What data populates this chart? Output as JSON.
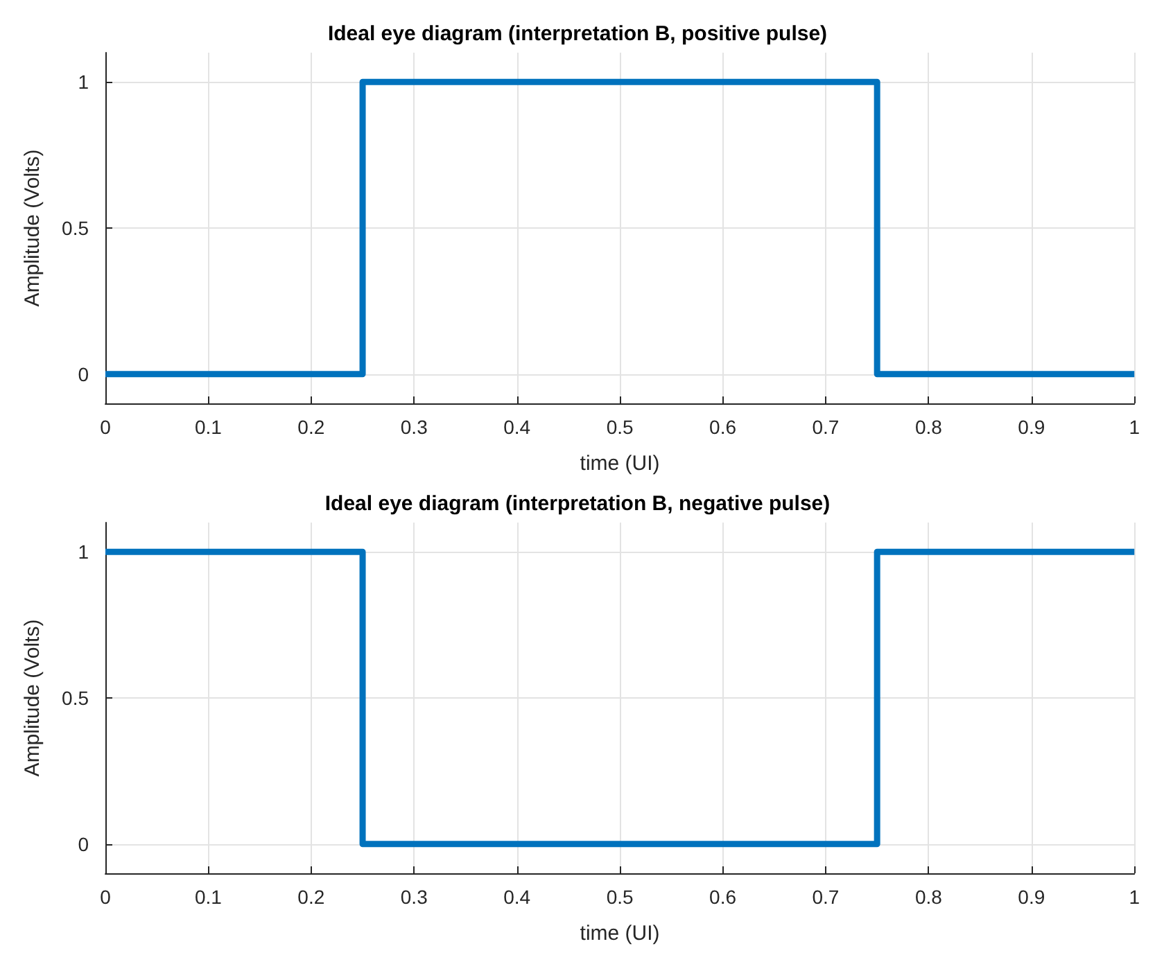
{
  "chart_data": [
    {
      "type": "line",
      "title": "Ideal eye diagram (interpretation B, positive pulse)",
      "xlabel": "time (UI)",
      "ylabel": "Amplitude (Volts)",
      "x": [
        0,
        0.25,
        0.25,
        0.75,
        0.75,
        1
      ],
      "series": [
        {
          "color": "#0072bd",
          "values": [
            0,
            0,
            1,
            1,
            0,
            0
          ]
        }
      ],
      "xlim": [
        0,
        1
      ],
      "ylim": [
        -0.1,
        1.1
      ],
      "xticks": [
        0,
        0.1,
        0.2,
        0.3,
        0.4,
        0.5,
        0.6,
        0.7,
        0.8,
        0.9,
        1
      ],
      "yticks": [
        0,
        0.5,
        1
      ],
      "grid": true,
      "line_style": "solid"
    },
    {
      "type": "line",
      "title": "Ideal eye diagram (interpretation B, negative pulse)",
      "xlabel": "time (UI)",
      "ylabel": "Amplitude (Volts)",
      "x": [
        0,
        0.25,
        0.25,
        0.75,
        0.75,
        1
      ],
      "series": [
        {
          "color": "#0072bd",
          "values": [
            1,
            1,
            0,
            0,
            1,
            1
          ]
        }
      ],
      "xlim": [
        0,
        1
      ],
      "ylim": [
        -0.1,
        1.1
      ],
      "xticks": [
        0,
        0.1,
        0.2,
        0.3,
        0.4,
        0.5,
        0.6,
        0.7,
        0.8,
        0.9,
        1
      ],
      "yticks": [
        0,
        0.5,
        1
      ],
      "grid": true,
      "line_style": "solid"
    }
  ]
}
